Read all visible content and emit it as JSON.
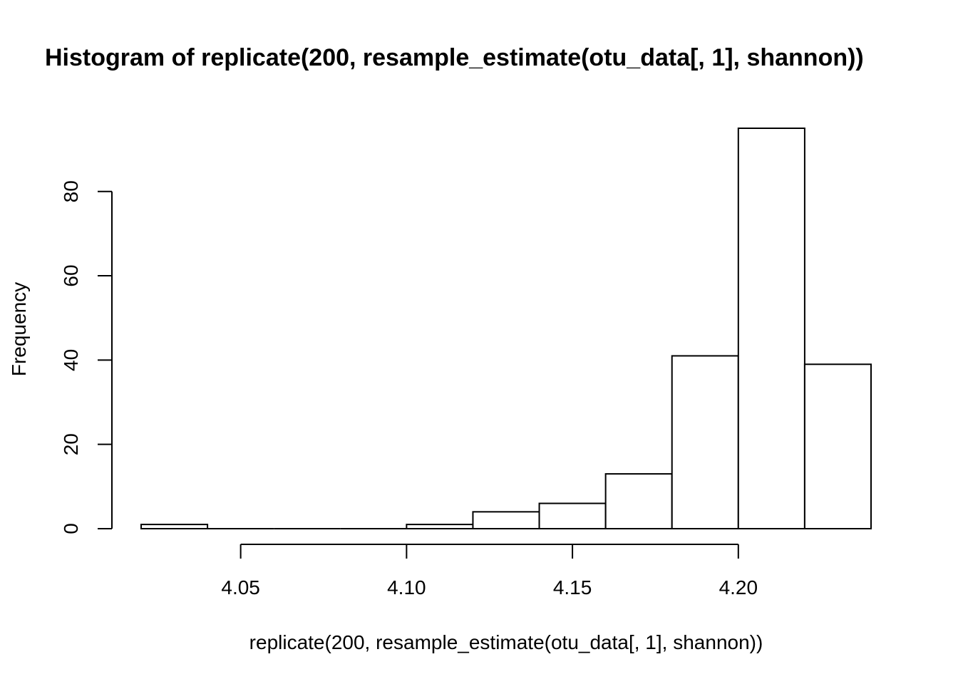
{
  "chart_data": {
    "type": "bar",
    "subtype": "histogram",
    "title": "Histogram of replicate(200, resample_estimate(otu_data[, 1], shannon))",
    "xlabel": "replicate(200, resample_estimate(otu_data[, 1], shannon))",
    "ylabel": "Frequency",
    "bins": [
      {
        "from": 4.02,
        "to": 4.04,
        "count": 1
      },
      {
        "from": 4.04,
        "to": 4.06,
        "count": 0
      },
      {
        "from": 4.06,
        "to": 4.08,
        "count": 0
      },
      {
        "from": 4.08,
        "to": 4.1,
        "count": 0
      },
      {
        "from": 4.1,
        "to": 4.12,
        "count": 1
      },
      {
        "from": 4.12,
        "to": 4.14,
        "count": 4
      },
      {
        "from": 4.14,
        "to": 4.16,
        "count": 6
      },
      {
        "from": 4.16,
        "to": 4.18,
        "count": 13
      },
      {
        "from": 4.18,
        "to": 4.2,
        "count": 41
      },
      {
        "from": 4.2,
        "to": 4.22,
        "count": 95
      },
      {
        "from": 4.22,
        "to": 4.24,
        "count": 39
      }
    ],
    "x_ticks": [
      4.05,
      4.1,
      4.15,
      4.2
    ],
    "x_tick_labels": [
      "4.05",
      "4.10",
      "4.15",
      "4.20"
    ],
    "y_ticks": [
      0,
      20,
      40,
      60,
      80
    ],
    "y_tick_labels": [
      "0",
      "20",
      "40",
      "60",
      "80"
    ],
    "xlim": [
      4.02,
      4.24
    ],
    "ylim": [
      0,
      95
    ],
    "grid": false,
    "legend": "none"
  }
}
